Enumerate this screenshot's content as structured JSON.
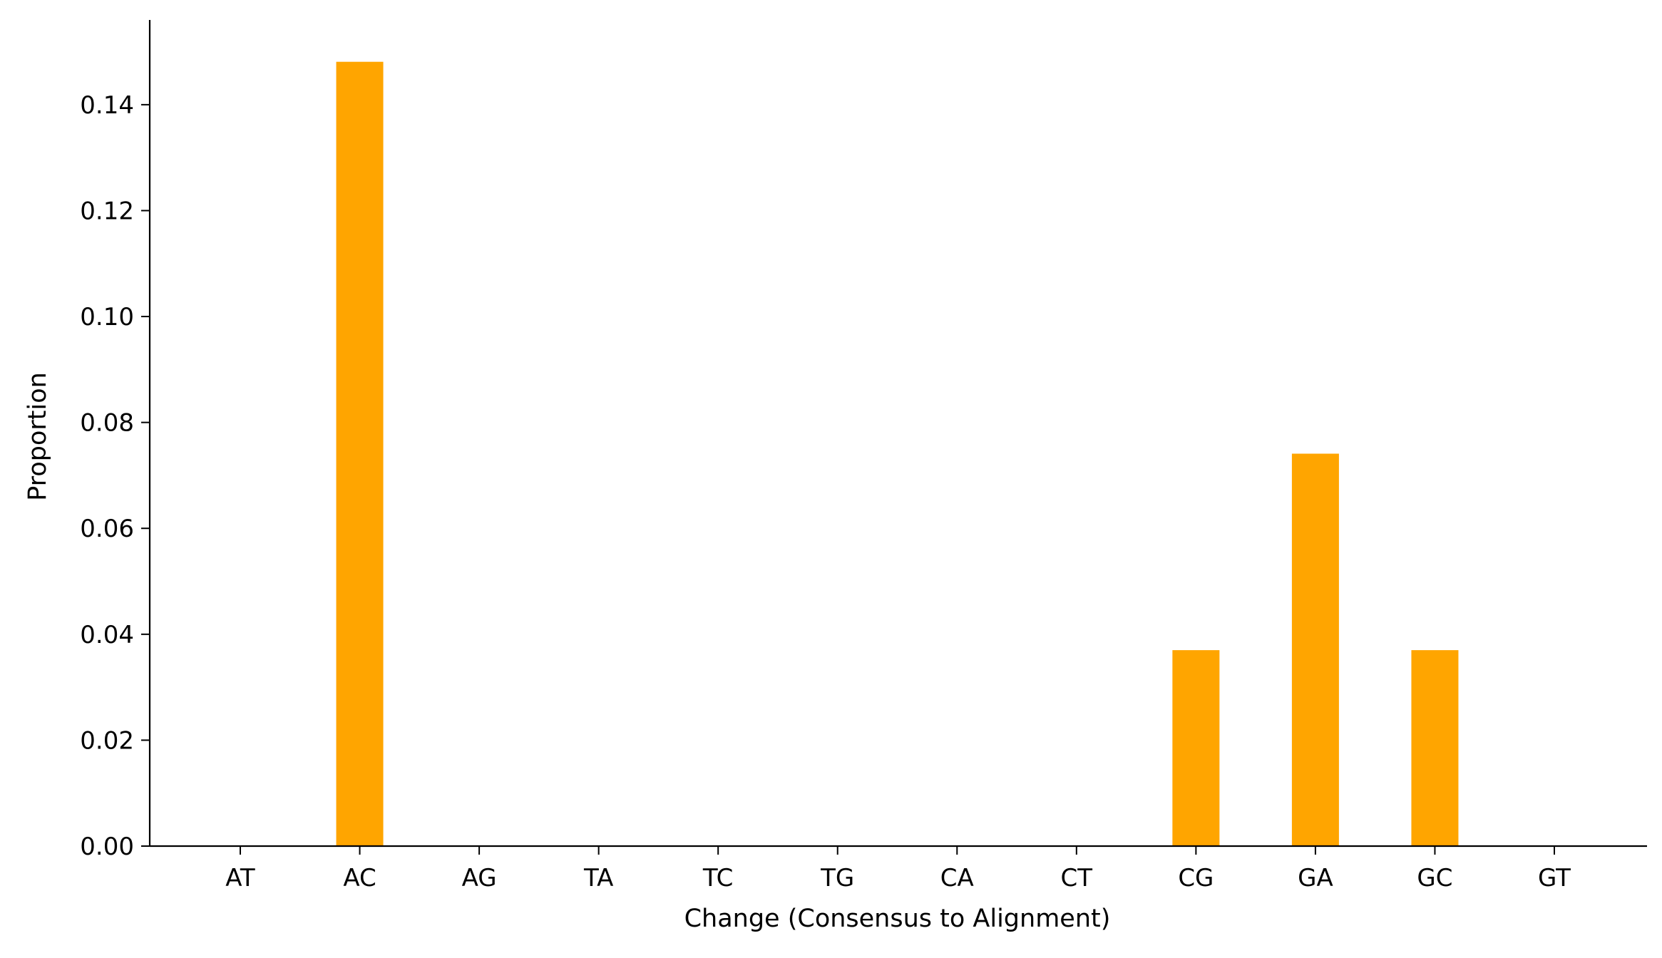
{
  "chart_data": {
    "type": "bar",
    "categories": [
      "AT",
      "AC",
      "AG",
      "TA",
      "TC",
      "TG",
      "CA",
      "CT",
      "CG",
      "GA",
      "GC",
      "GT"
    ],
    "values": [
      0,
      0.1481,
      0,
      0,
      0,
      0,
      0,
      0,
      0.037,
      0.0741,
      0.037,
      0
    ],
    "title": "",
    "xlabel": "Change (Consensus to Alignment)",
    "ylabel": "Proportion",
    "ylim": [
      0,
      0.156
    ],
    "yticks": [
      "0.00",
      "0.02",
      "0.04",
      "0.06",
      "0.08",
      "0.10",
      "0.12",
      "0.14"
    ],
    "ytick_values": [
      0,
      0.02,
      0.04,
      0.06,
      0.08,
      0.1,
      0.12,
      0.14
    ],
    "bar_color": "#FFA500",
    "grid": false,
    "legend": "none"
  }
}
